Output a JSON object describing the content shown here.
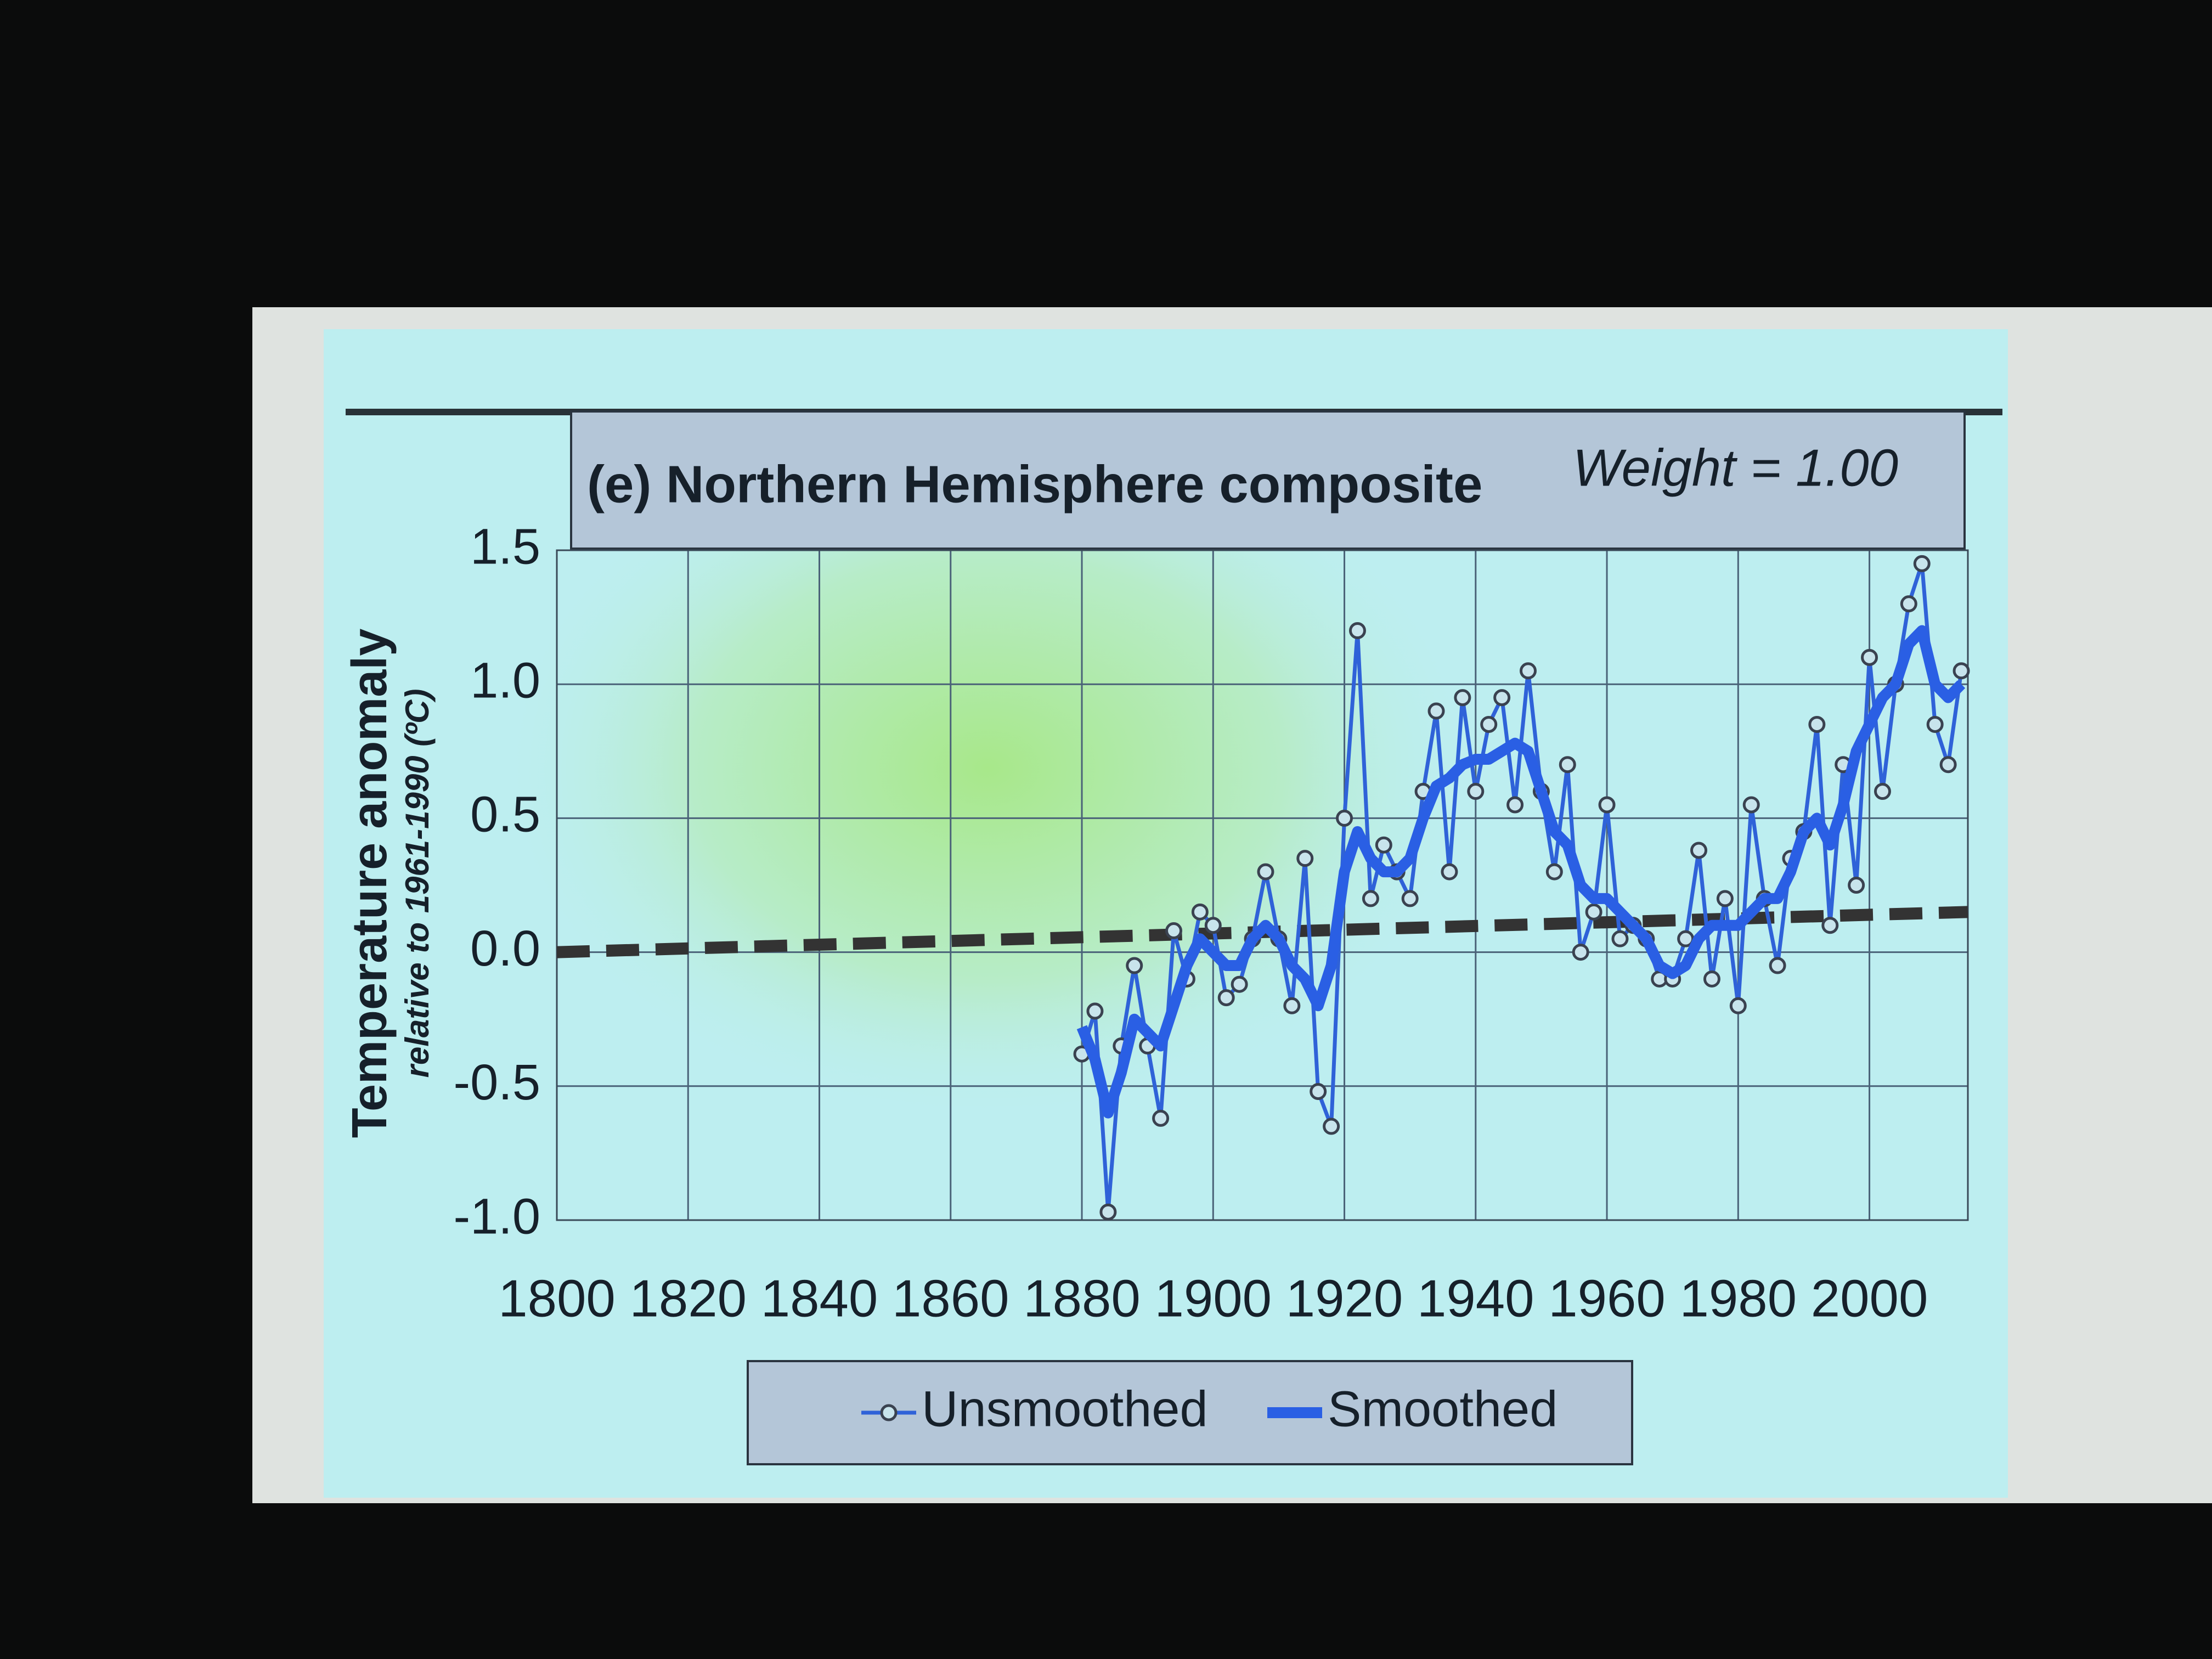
{
  "chart_data": {
    "type": "line",
    "title": "(e) Northern Hemisphere composite",
    "annotation": "Weight = 1.00",
    "ylabel": "Temperature anomaly",
    "ylabel_sub": "relative to 1961-1990 (ºC)",
    "xlim": [
      1800,
      2015
    ],
    "xticks": [
      1800,
      1820,
      1840,
      1860,
      1880,
      1900,
      1920,
      1940,
      1960,
      1980,
      2000
    ],
    "ylim": [
      -1,
      1.5
    ],
    "yticks": [
      {
        "value": -1,
        "label": "-1.0"
      },
      -0.5,
      {
        "value": 0,
        "label": "0.0"
      },
      0.5,
      {
        "value": 1,
        "label": "1.0"
      },
      1.5
    ],
    "grid": true,
    "legend": "bottom",
    "x": [
      1880,
      1882,
      1884,
      1886,
      1888,
      1890,
      1892,
      1894,
      1896,
      1898,
      1900,
      1902,
      1904,
      1906,
      1908,
      1910,
      1912,
      1914,
      1916,
      1918,
      1920,
      1922,
      1924,
      1926,
      1928,
      1930,
      1932,
      1934,
      1936,
      1938,
      1940,
      1942,
      1944,
      1946,
      1948,
      1950,
      1952,
      1954,
      1956,
      1958,
      1960,
      1962,
      1964,
      1966,
      1968,
      1970,
      1972,
      1974,
      1976,
      1978,
      1980,
      1982,
      1984,
      1986,
      1988,
      1990,
      1992,
      1994,
      1996,
      1998,
      2000,
      2002,
      2004,
      2006,
      2008,
      2010,
      2012,
      2014
    ],
    "series": [
      {
        "name": "Unsmoothed",
        "color": "#2f62d8",
        "markers": true,
        "values": [
          -0.38,
          -0.22,
          -0.97,
          -0.35,
          -0.05,
          -0.35,
          -0.62,
          0.08,
          -0.1,
          0.15,
          0.1,
          -0.17,
          -0.12,
          0.05,
          0.3,
          0.05,
          -0.2,
          0.35,
          -0.52,
          -0.65,
          0.5,
          1.2,
          0.2,
          0.4,
          0.3,
          0.2,
          0.6,
          0.9,
          0.3,
          0.95,
          0.6,
          0.85,
          0.95,
          0.55,
          1.05,
          0.6,
          0.3,
          0.7,
          0.0,
          0.15,
          0.55,
          0.05,
          0.1,
          0.05,
          -0.1,
          -0.1,
          0.05,
          0.38,
          -0.1,
          0.2,
          -0.2,
          0.55,
          0.2,
          -0.05,
          0.35,
          0.45,
          0.85,
          0.1,
          0.7,
          0.25,
          1.1,
          0.6,
          1.0,
          1.3,
          1.45,
          0.85,
          0.7,
          1.05
        ]
      },
      {
        "name": "Smoothed",
        "color": "#2a5fe4",
        "markers": false,
        "values": [
          -0.28,
          -0.4,
          -0.6,
          -0.45,
          -0.25,
          -0.3,
          -0.35,
          -0.2,
          -0.05,
          0.05,
          0.0,
          -0.05,
          -0.05,
          0.05,
          0.1,
          0.05,
          -0.05,
          -0.1,
          -0.2,
          -0.05,
          0.3,
          0.45,
          0.35,
          0.3,
          0.3,
          0.35,
          0.5,
          0.62,
          0.65,
          0.7,
          0.72,
          0.72,
          0.75,
          0.78,
          0.75,
          0.6,
          0.45,
          0.4,
          0.25,
          0.2,
          0.2,
          0.15,
          0.1,
          0.05,
          -0.05,
          -0.08,
          -0.05,
          0.05,
          0.1,
          0.1,
          0.1,
          0.15,
          0.2,
          0.2,
          0.3,
          0.45,
          0.5,
          0.4,
          0.55,
          0.75,
          0.85,
          0.95,
          1.0,
          1.15,
          1.2,
          1.0,
          0.95,
          1.0
        ]
      }
    ],
    "trend": {
      "color": "#333333",
      "x": [
        1800,
        2015
      ],
      "values": [
        0.0,
        0.15
      ]
    }
  }
}
